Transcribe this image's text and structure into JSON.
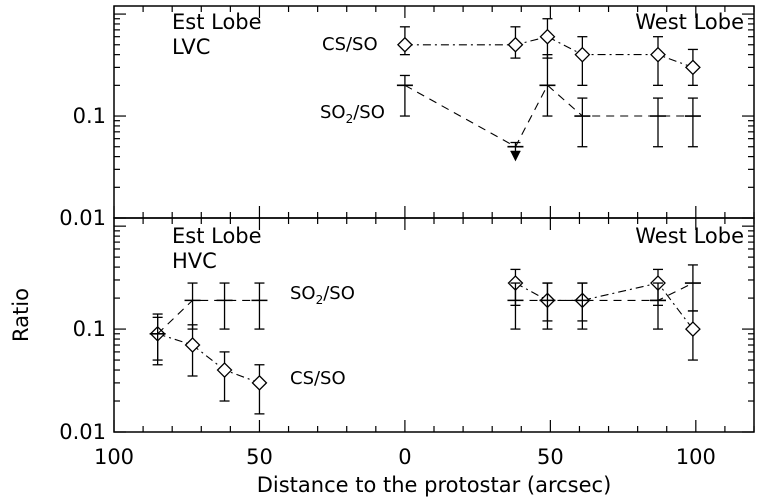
{
  "chart_data": [
    {
      "type": "scatter",
      "panel": "top",
      "yscale": "log",
      "ylim": [
        0.01,
        1.2
      ],
      "yticks": [
        "0.01",
        "0.1"
      ],
      "ytick_values": [
        0.01,
        0.1
      ],
      "grid": false,
      "annotations": {
        "left": "Est Lobe",
        "left2": "LVC",
        "right": "West Lobe"
      },
      "series": [
        {
          "name": "CS/SO",
          "line": "dash-dot",
          "marker": "diamond",
          "x": [
            0,
            38,
            49,
            61,
            87,
            99
          ],
          "y": [
            0.5,
            0.5,
            0.6,
            0.4,
            0.4,
            0.3
          ],
          "err_low": [
            0.4,
            0.37,
            0.37,
            0.2,
            0.2,
            0.2
          ],
          "err_high": [
            0.75,
            0.75,
            0.9,
            0.6,
            0.6,
            0.45
          ]
        },
        {
          "name": "SO2/SO",
          "line": "dashed",
          "marker": "plus",
          "x": [
            0,
            38,
            49,
            61,
            87,
            99
          ],
          "y": [
            0.2,
            0.05,
            0.2,
            0.1,
            0.1,
            0.1
          ],
          "err_low": [
            0.1,
            0.045,
            0.1,
            0.05,
            0.05,
            0.05
          ],
          "err_high": [
            0.25,
            0.055,
            0.4,
            0.15,
            0.15,
            0.15
          ],
          "upper_limit": [
            false,
            true,
            false,
            false,
            false,
            false
          ]
        }
      ]
    },
    {
      "type": "scatter",
      "panel": "bottom",
      "yscale": "log",
      "ylim": [
        0.01,
        1.2
      ],
      "yticks": [
        "0.01",
        "0.1"
      ],
      "ytick_values": [
        0.01,
        0.1
      ],
      "ylabel": "Ratio",
      "xlabel": "Distance to the protostar (arcsec)",
      "xticks": [
        "100",
        "50",
        "0",
        "50",
        "100"
      ],
      "xtick_positions": [
        -100,
        -50,
        0,
        50,
        100
      ],
      "xlim": [
        -100,
        120
      ],
      "grid": false,
      "annotations": {
        "left": "Est Lobe",
        "left2": "HVC",
        "right": "West Lobe"
      },
      "series": [
        {
          "name": "CS/SO",
          "line": "dash-dot",
          "marker": "diamond",
          "x": [
            -85,
            -73,
            -62,
            -50,
            38,
            49,
            61,
            87,
            99
          ],
          "y": [
            0.09,
            0.07,
            0.04,
            0.03,
            0.28,
            0.19,
            0.19,
            0.28,
            0.1
          ],
          "err_low": [
            0.05,
            0.035,
            0.02,
            0.015,
            0.17,
            0.12,
            0.12,
            0.17,
            0.05
          ],
          "err_high": [
            0.14,
            0.11,
            0.06,
            0.045,
            0.38,
            0.28,
            0.28,
            0.38,
            0.15
          ]
        },
        {
          "name": "SO2/SO",
          "line": "dashed",
          "marker": "plus",
          "x": [
            -85,
            -73,
            -62,
            -50,
            38,
            49,
            61,
            87,
            99
          ],
          "y": [
            0.09,
            0.19,
            0.19,
            0.19,
            0.19,
            0.19,
            0.19,
            0.19,
            0.28
          ],
          "err_low": [
            0.045,
            0.1,
            0.1,
            0.1,
            0.1,
            0.1,
            0.1,
            0.1,
            0.15
          ],
          "err_high": [
            0.13,
            0.28,
            0.28,
            0.28,
            0.28,
            0.28,
            0.28,
            0.28,
            0.42
          ]
        }
      ]
    }
  ]
}
